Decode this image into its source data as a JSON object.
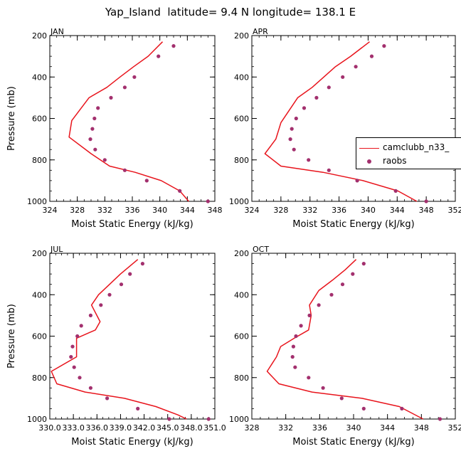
{
  "figure_title": "Yap_Island  latitude= 9.4 N longitude= 138.1 E",
  "colors": {
    "model": "#e8141c",
    "obs": "#a3306e"
  },
  "legend": {
    "placement": "right-middle",
    "items": [
      {
        "label": "camclubb_n33_",
        "kind": "line"
      },
      {
        "label": "raobs",
        "kind": "marker"
      }
    ]
  },
  "chart_data": [
    {
      "type": "line",
      "title": "JAN",
      "xlabel": "Moist Static Energy (kJ/kg)",
      "ylabel": "Pressure (mb)",
      "xlim": [
        324,
        348
      ],
      "ylim": [
        1000,
        200
      ],
      "xticks": [
        324,
        328,
        332,
        336,
        340,
        344,
        348
      ],
      "xticklabels": [
        "324",
        "328",
        "332",
        "336",
        "340",
        "344",
        "348"
      ],
      "yticks": [
        200,
        400,
        600,
        800,
        1000
      ],
      "yticklabels": [
        "200",
        "400",
        "600",
        "800",
        "1000"
      ],
      "series": [
        {
          "name": "camclubb_n33_",
          "style": "line",
          "x": [
            340.4,
            338.3,
            336.2,
            334.2,
            332.3,
            329.7,
            327.2,
            326.8,
            330.0,
            332.7,
            336.4,
            340.2,
            342.9,
            344.2
          ],
          "y": [
            230,
            300,
            350,
            400,
            450,
            500,
            610,
            690,
            770,
            830,
            860,
            900,
            950,
            1000
          ]
        },
        {
          "name": "raobs",
          "style": "marker",
          "x": [
            342.0,
            339.8,
            336.3,
            334.9,
            332.9,
            331.0,
            330.5,
            330.2,
            329.9,
            330.6,
            332.0,
            334.9,
            338.1,
            342.9,
            347.0
          ],
          "y": [
            250,
            300,
            400,
            450,
            500,
            550,
            600,
            650,
            700,
            750,
            800,
            850,
            900,
            950,
            1000
          ]
        }
      ]
    },
    {
      "type": "line",
      "title": "APR",
      "xlabel": "Moist Static Energy (kJ/kg)",
      "ylabel": "",
      "xlim": [
        324,
        352
      ],
      "ylim": [
        1000,
        200
      ],
      "xticks": [
        324,
        328,
        332,
        336,
        340,
        344,
        348,
        352
      ],
      "xticklabels": [
        "324",
        "328",
        "332",
        "336",
        "340",
        "344",
        "348",
        "352"
      ],
      "yticks": [
        200,
        400,
        600,
        800,
        1000
      ],
      "yticklabels": [
        "200",
        "400",
        "600",
        "800",
        "1000"
      ],
      "series": [
        {
          "name": "camclubb_n33_",
          "style": "line",
          "x": [
            340.2,
            337.6,
            335.5,
            333.9,
            332.3,
            330.3,
            328.0,
            327.3,
            325.8,
            328.0,
            333.8,
            339.3,
            344.1,
            346.7
          ],
          "y": [
            230,
            300,
            350,
            400,
            450,
            500,
            620,
            700,
            770,
            830,
            860,
            900,
            950,
            1000
          ]
        },
        {
          "name": "raobs",
          "style": "marker",
          "x": [
            342.2,
            340.5,
            338.3,
            336.5,
            334.6,
            332.9,
            331.2,
            330.1,
            329.5,
            329.3,
            329.8,
            331.8,
            334.6,
            338.5,
            343.8,
            348.0
          ],
          "y": [
            250,
            300,
            350,
            400,
            450,
            500,
            550,
            600,
            650,
            700,
            750,
            800,
            850,
            900,
            950,
            1000
          ]
        }
      ]
    },
    {
      "type": "line",
      "title": "JUL",
      "xlabel": "Moist Static Energy (kJ/kg)",
      "ylabel": "Pressure (mb)",
      "xlim": [
        330,
        351
      ],
      "ylim": [
        1000,
        200
      ],
      "xticks": [
        330,
        333,
        336,
        339,
        342,
        345,
        348,
        351
      ],
      "xticklabels": [
        "330.0",
        "333.0",
        "336.0",
        "339.0",
        "342.0",
        "345.0",
        "348.0",
        "351.0"
      ],
      "yticks": [
        200,
        400,
        600,
        800,
        1000
      ],
      "yticklabels": [
        "200",
        "400",
        "600",
        "800",
        "1000"
      ],
      "series": [
        {
          "name": "camclubb_n33_",
          "style": "line",
          "x": [
            341.2,
            339.0,
            337.6,
            336.2,
            335.3,
            336.4,
            335.8,
            333.4,
            333.4,
            330.2,
            330.9,
            334.5,
            339.5,
            343.5,
            346.3,
            347.4
          ],
          "y": [
            230,
            300,
            350,
            400,
            450,
            530,
            570,
            610,
            700,
            770,
            830,
            870,
            900,
            940,
            980,
            1000
          ]
        },
        {
          "name": "raobs",
          "style": "marker",
          "x": [
            341.8,
            340.2,
            339.1,
            337.6,
            336.5,
            335.2,
            334.0,
            333.5,
            332.9,
            332.7,
            333.1,
            333.8,
            335.2,
            337.3,
            341.2,
            345.2,
            350.2
          ],
          "y": [
            250,
            300,
            350,
            400,
            450,
            500,
            550,
            600,
            650,
            700,
            750,
            800,
            850,
            900,
            950,
            1000,
            1000
          ]
        }
      ]
    },
    {
      "type": "line",
      "title": "OCT",
      "xlabel": "Moist Static Energy (kJ/kg)",
      "ylabel": "",
      "xlim": [
        328,
        352
      ],
      "ylim": [
        1000,
        200
      ],
      "xticks": [
        328,
        332,
        336,
        340,
        344,
        348,
        352
      ],
      "xticklabels": [
        "328",
        "332",
        "336",
        "340",
        "344",
        "348",
        "352"
      ],
      "yticks": [
        200,
        400,
        600,
        800,
        1000
      ],
      "yticklabels": [
        "200",
        "400",
        "600",
        "800",
        "1000"
      ],
      "series": [
        {
          "name": "camclubb_n33_",
          "style": "line",
          "x": [
            340.3,
            339.0,
            337.5,
            335.9,
            334.8,
            335.0,
            334.7,
            333.0,
            331.4,
            330.9,
            329.8,
            331.2,
            335.1,
            341.0,
            345.4,
            348.2
          ],
          "y": [
            230,
            280,
            330,
            380,
            450,
            500,
            570,
            610,
            650,
            700,
            770,
            830,
            870,
            900,
            940,
            1000
          ]
        },
        {
          "name": "raobs",
          "style": "marker",
          "x": [
            341.2,
            339.9,
            338.7,
            337.4,
            335.9,
            334.8,
            333.8,
            333.2,
            332.9,
            332.8,
            333.1,
            334.7,
            336.4,
            338.6,
            341.2,
            345.7,
            350.2
          ],
          "y": [
            250,
            300,
            350,
            400,
            450,
            500,
            550,
            600,
            650,
            700,
            750,
            800,
            850,
            900,
            950,
            950,
            1000
          ]
        }
      ]
    }
  ]
}
